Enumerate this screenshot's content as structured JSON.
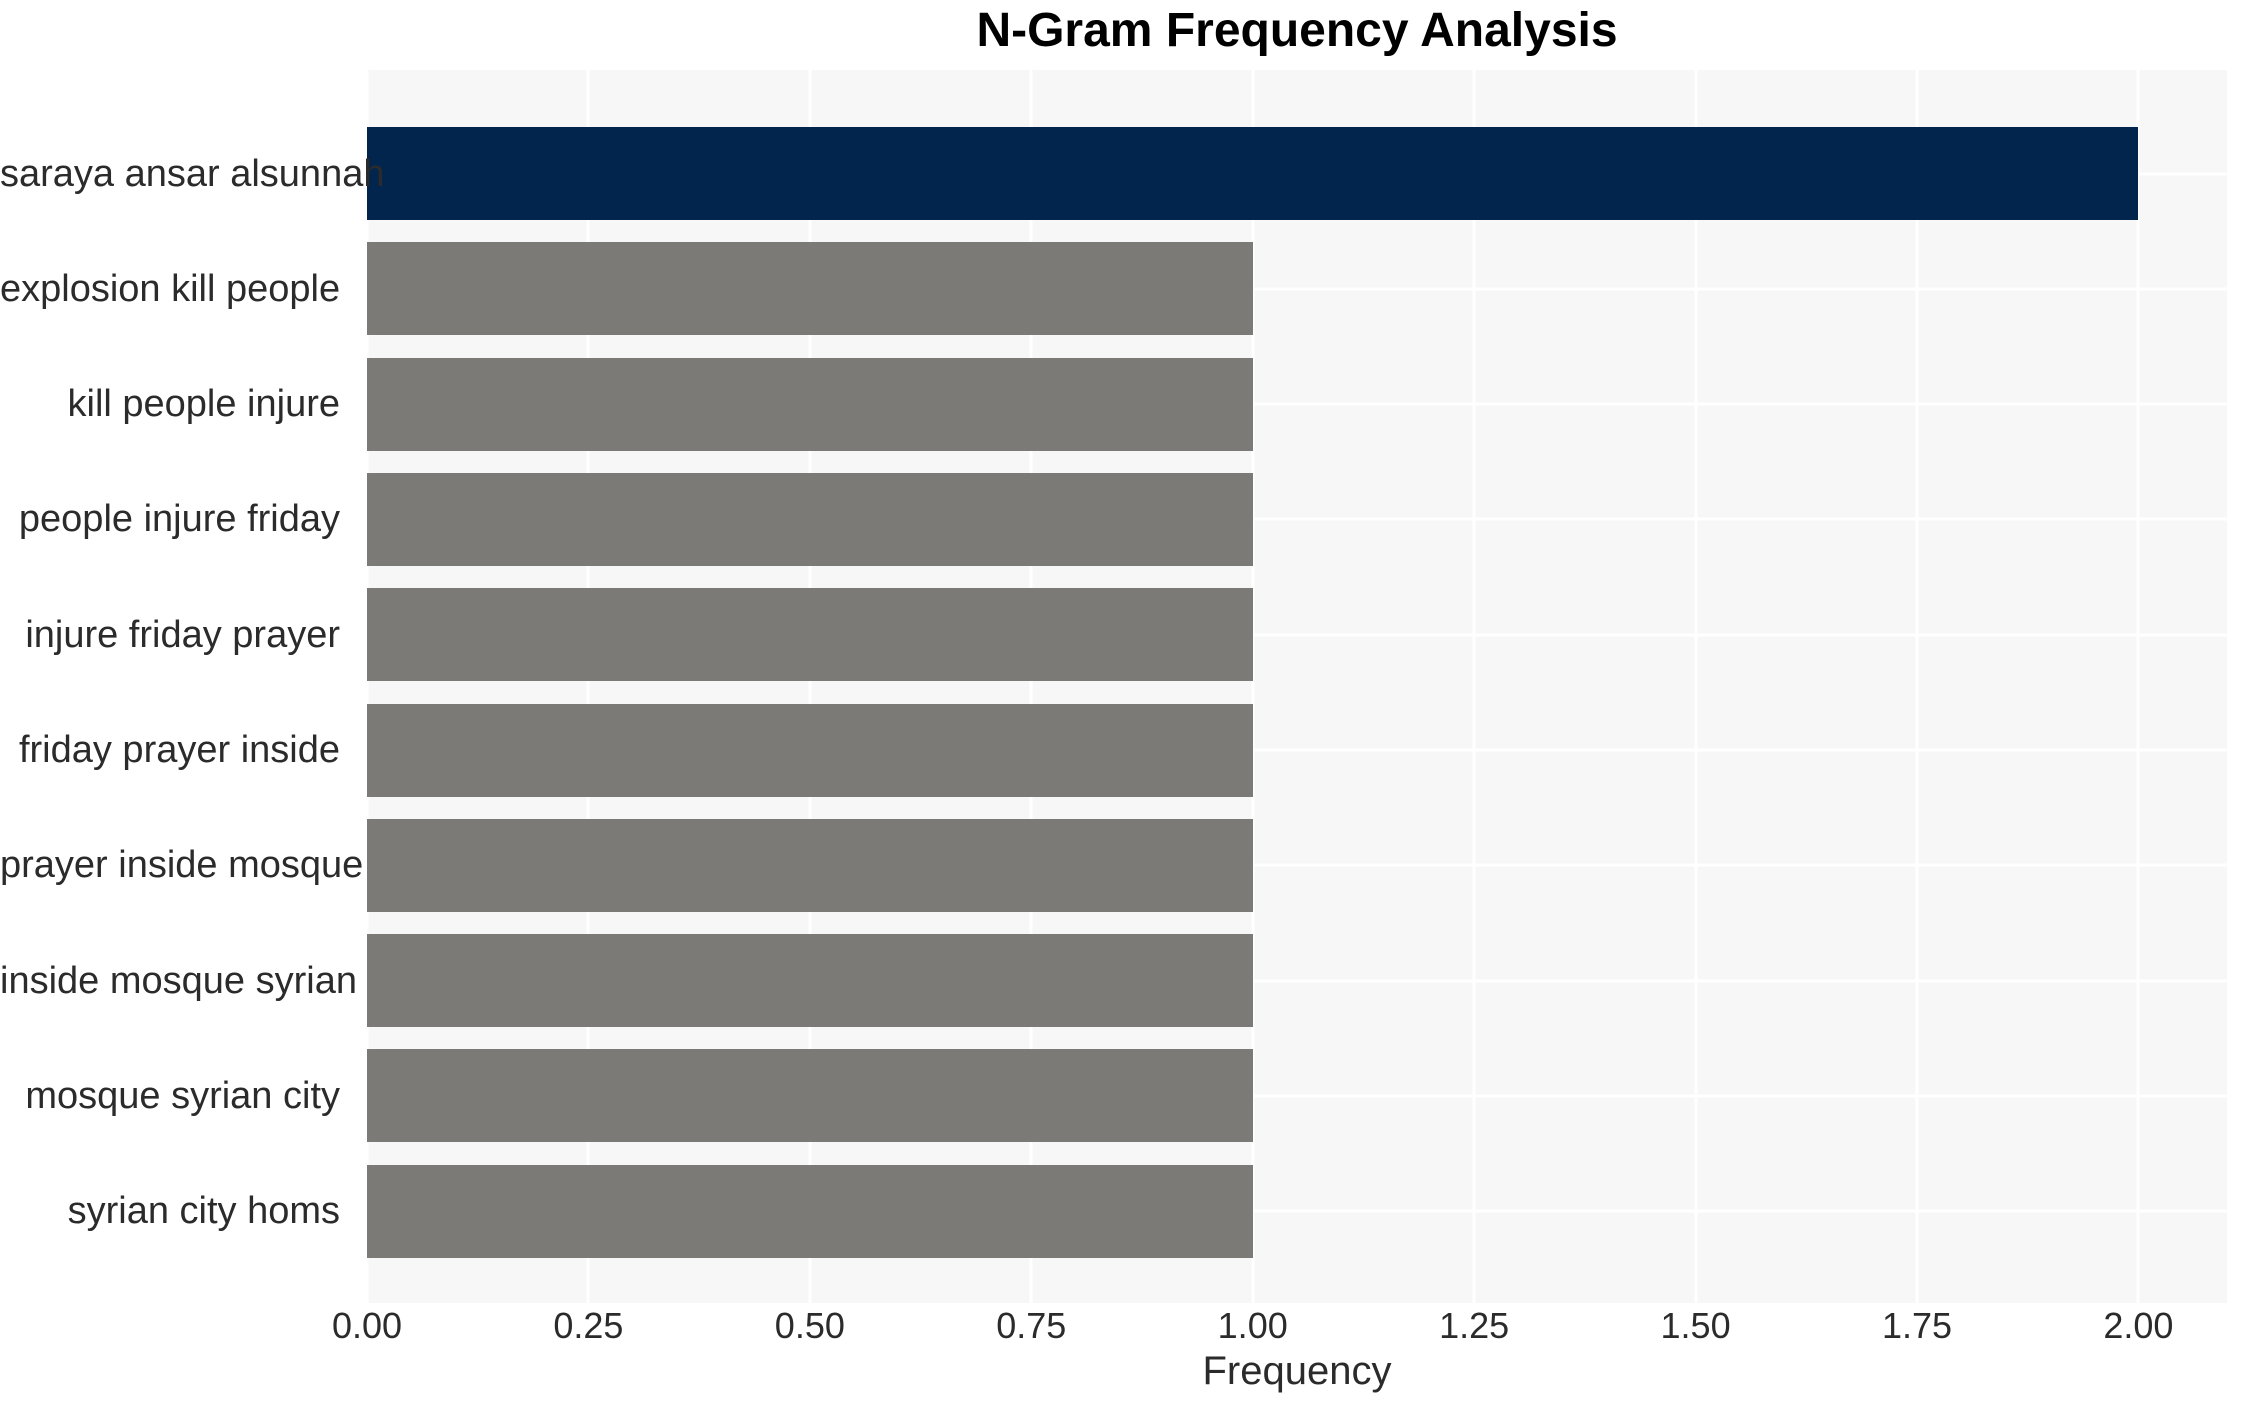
{
  "chart_data": {
    "type": "bar",
    "orientation": "horizontal",
    "title": "N-Gram Frequency Analysis",
    "xlabel": "Frequency",
    "ylabel": "",
    "categories": [
      "saraya ansar alsunnah",
      "explosion kill people",
      "kill people injure",
      "people injure friday",
      "injure friday prayer",
      "friday prayer inside",
      "prayer inside mosque",
      "inside mosque syrian",
      "mosque syrian city",
      "syrian city homs"
    ],
    "values": [
      2,
      1,
      1,
      1,
      1,
      1,
      1,
      1,
      1,
      1
    ],
    "highlight_index": 0,
    "xlim": [
      0,
      2.1
    ],
    "xticks": [
      {
        "label": "0.00",
        "value": 0.0
      },
      {
        "label": "0.25",
        "value": 0.25
      },
      {
        "label": "0.50",
        "value": 0.5
      },
      {
        "label": "0.75",
        "value": 0.75
      },
      {
        "label": "1.00",
        "value": 1.0
      },
      {
        "label": "1.25",
        "value": 1.25
      },
      {
        "label": "1.50",
        "value": 1.5
      },
      {
        "label": "1.75",
        "value": 1.75
      },
      {
        "label": "2.00",
        "value": 2.0
      }
    ],
    "grid": true,
    "legend": false,
    "colors": {
      "highlight_bar": "#02254e",
      "bar": "#7b7a76",
      "plot_background": "#f7f7f7",
      "gridline": "#ffffff",
      "tick_text": "#2b2b2b",
      "title_text": "#000000"
    }
  }
}
